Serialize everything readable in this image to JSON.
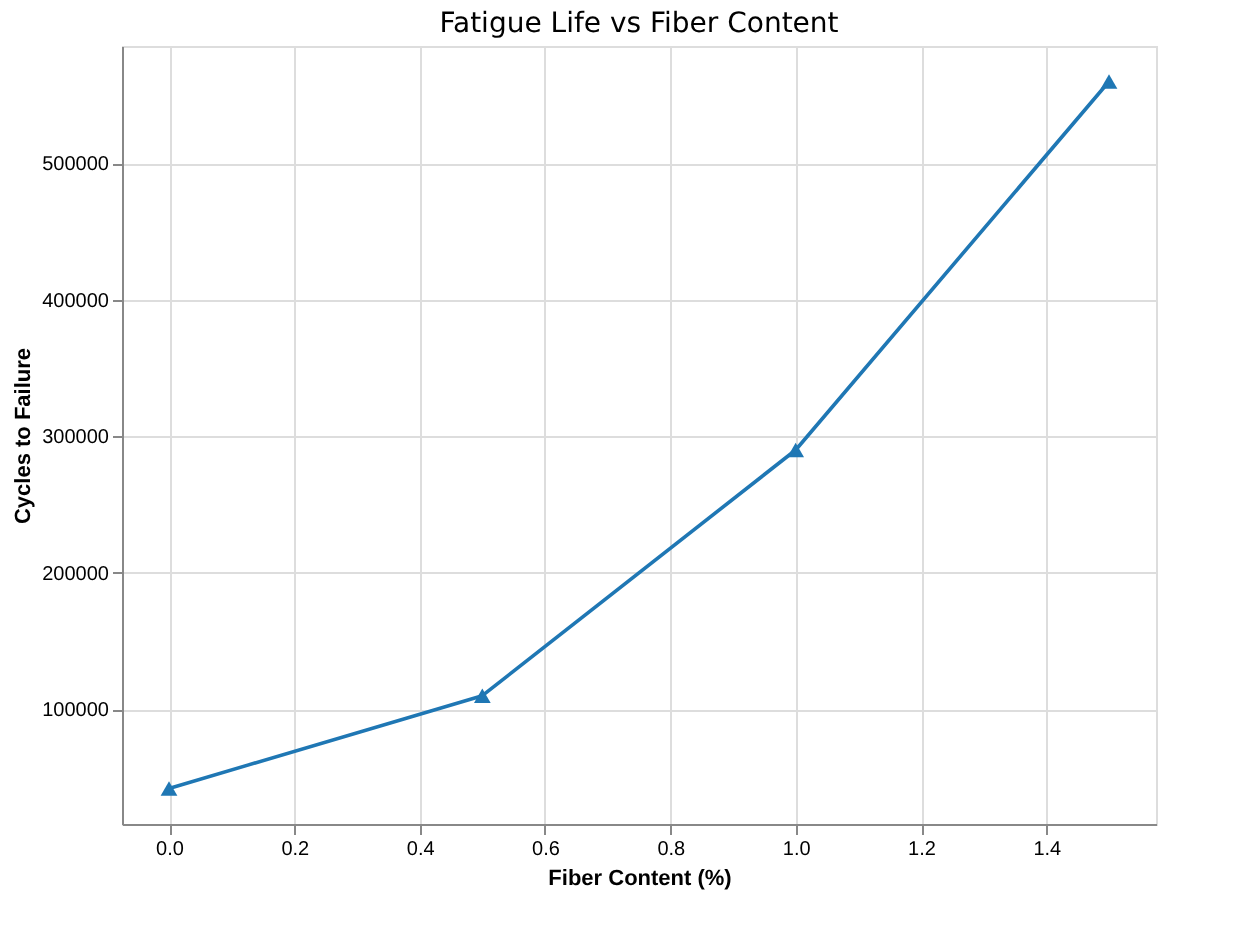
{
  "chart_data": {
    "type": "line",
    "title": "Fatigue Life vs Fiber Content",
    "xlabel": "Fiber Content (%)",
    "ylabel": "Cycles to Failure",
    "x": [
      0.0,
      0.5,
      1.0,
      1.5
    ],
    "series": [
      {
        "color": "#1f77b4",
        "values": [
          42000,
          110000,
          290000,
          560000
        ]
      }
    ],
    "xlim": [
      -0.075,
      1.575
    ],
    "xticks": [
      {
        "value": 0.0,
        "label": "0.0"
      },
      0.2,
      0.4,
      0.6,
      0.8,
      {
        "value": 1.0,
        "label": "1.0"
      },
      1.2,
      1.4
    ],
    "ylim": [
      16000,
      586000
    ],
    "yticks": [
      100000,
      200000,
      300000,
      400000,
      500000
    ],
    "grid": true,
    "marker": "triangle",
    "line_style": "solid"
  }
}
